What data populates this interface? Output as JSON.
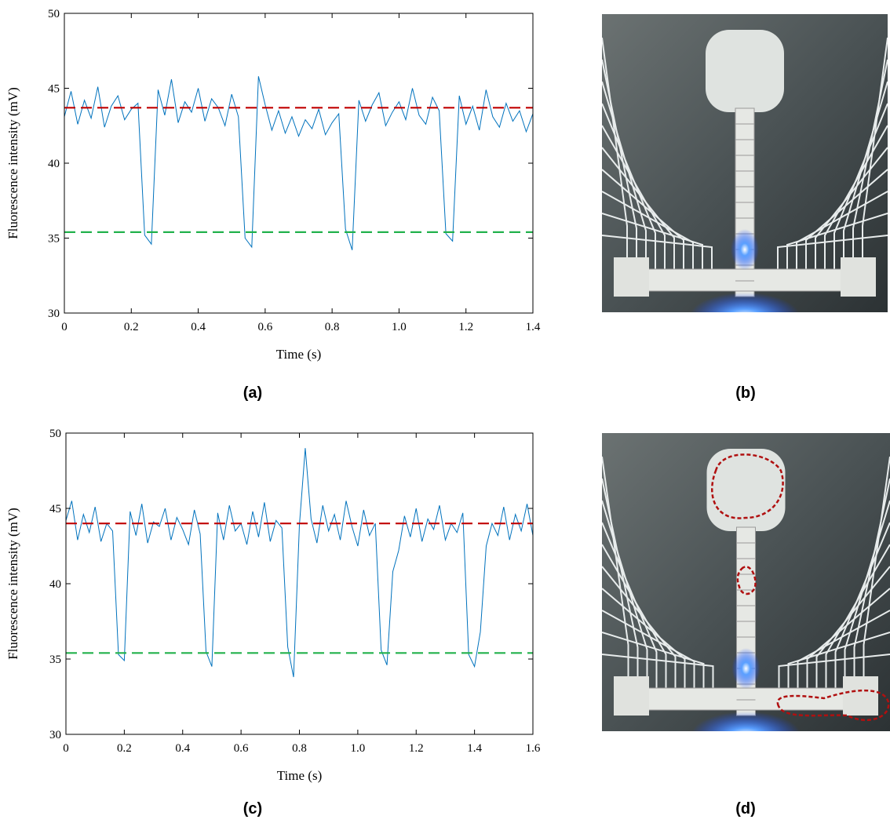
{
  "chart_data": [
    {
      "type": "line",
      "xlabel": "Time (s)",
      "ylabel": "Fluorescence intensity (mV)",
      "xlim": [
        0,
        1.4
      ],
      "xticks": [
        0,
        0.2,
        0.4,
        0.6,
        0.8,
        {
          "value": 1,
          "label": "1.0"
        },
        1.2,
        1.4
      ],
      "ylim": [
        30,
        50
      ],
      "yticks": [
        30,
        35,
        40,
        45,
        50
      ],
      "x": [
        0,
        0.02,
        0.04,
        0.06,
        0.08,
        0.1,
        0.12,
        0.14,
        0.16,
        0.18,
        0.2,
        0.22,
        0.24,
        0.26,
        0.28,
        0.3,
        0.32,
        0.34,
        0.36,
        0.38,
        0.4,
        0.42,
        0.44,
        0.46,
        0.48,
        0.5,
        0.52,
        0.54,
        0.56,
        0.58,
        0.6,
        0.62,
        0.64,
        0.66,
        0.68,
        0.7,
        0.72,
        0.74,
        0.76,
        0.78,
        0.8,
        0.82,
        0.84,
        0.86,
        0.88,
        0.9,
        0.92,
        0.94,
        0.96,
        0.98,
        1,
        1.02,
        1.04,
        1.06,
        1.08,
        1.1,
        1.12,
        1.14,
        1.16,
        1.18,
        1.2,
        1.22,
        1.24,
        1.26,
        1.28,
        1.3,
        1.32,
        1.34,
        1.36,
        1.38,
        1.4
      ],
      "series": [
        {
          "color": "#0072bd",
          "values": [
            43.1,
            44.8,
            42.6,
            44.2,
            43.0,
            45.1,
            42.4,
            43.8,
            44.5,
            42.9,
            43.6,
            44.0,
            35.2,
            34.6,
            44.9,
            43.2,
            45.6,
            42.7,
            44.1,
            43.4,
            45.0,
            42.8,
            44.3,
            43.7,
            42.5,
            44.6,
            43.1,
            35.0,
            34.4,
            45.8,
            43.9,
            42.2,
            43.5,
            42.0,
            43.1,
            41.8,
            42.9,
            42.3,
            43.6,
            41.9,
            42.7,
            43.3,
            35.6,
            34.2,
            44.2,
            42.8,
            43.9,
            44.7,
            42.5,
            43.4,
            44.1,
            42.9,
            45.0,
            43.2,
            42.6,
            44.4,
            43.5,
            35.3,
            34.8,
            44.5,
            42.6,
            43.8,
            42.2,
            44.9,
            43.1,
            42.4,
            44.0,
            42.8,
            43.5,
            42.1,
            43.3
          ]
        }
      ],
      "hlines": [
        {
          "value": 43.7,
          "color": "#c00000"
        },
        {
          "value": 35.4,
          "color": "#22b14c"
        }
      ]
    },
    {
      "type": "line",
      "xlabel": "Time (s)",
      "ylabel": "Fluorescence intensity (mV)",
      "xlim": [
        0,
        1.6
      ],
      "xticks": [
        0,
        0.2,
        0.4,
        0.6,
        0.8,
        {
          "value": 1,
          "label": "1.0"
        },
        1.2,
        1.4,
        1.6
      ],
      "ylim": [
        30,
        50
      ],
      "yticks": [
        30,
        35,
        40,
        45,
        50
      ],
      "x": [
        0,
        0.02,
        0.04,
        0.06,
        0.08,
        0.1,
        0.12,
        0.14,
        0.16,
        0.18,
        0.2,
        0.22,
        0.24,
        0.26,
        0.28,
        0.3,
        0.32,
        0.34,
        0.36,
        0.38,
        0.4,
        0.42,
        0.44,
        0.46,
        0.48,
        0.5,
        0.52,
        0.54,
        0.56,
        0.58,
        0.6,
        0.62,
        0.64,
        0.66,
        0.68,
        0.7,
        0.72,
        0.74,
        0.76,
        0.78,
        0.8,
        0.82,
        0.84,
        0.86,
        0.88,
        0.9,
        0.92,
        0.94,
        0.96,
        0.98,
        1,
        1.02,
        1.04,
        1.06,
        1.08,
        1.1,
        1.12,
        1.14,
        1.16,
        1.18,
        1.2,
        1.22,
        1.24,
        1.26,
        1.28,
        1.3,
        1.32,
        1.34,
        1.36,
        1.38,
        1.4,
        1.42,
        1.44,
        1.46,
        1.48,
        1.5,
        1.52,
        1.54,
        1.56,
        1.58,
        1.6
      ],
      "series": [
        {
          "color": "#0072bd",
          "values": [
            44.2,
            45.5,
            42.9,
            44.6,
            43.4,
            45.1,
            42.8,
            44.0,
            43.5,
            35.3,
            34.9,
            44.8,
            43.2,
            45.3,
            42.7,
            44.1,
            43.8,
            45.0,
            42.9,
            44.4,
            43.6,
            42.6,
            44.9,
            43.3,
            35.5,
            34.5,
            44.7,
            42.9,
            45.2,
            43.5,
            44.0,
            42.6,
            44.8,
            43.1,
            45.4,
            42.8,
            44.2,
            43.7,
            35.8,
            33.8,
            43.9,
            49.0,
            44.3,
            42.7,
            45.2,
            43.5,
            44.6,
            42.9,
            45.5,
            43.8,
            42.5,
            44.9,
            43.2,
            44.0,
            35.6,
            34.6,
            40.8,
            42.2,
            44.5,
            43.1,
            45.0,
            42.8,
            44.3,
            43.6,
            45.2,
            42.9,
            44.0,
            43.4,
            44.7,
            35.3,
            34.5,
            36.8,
            42.5,
            44.0,
            43.2,
            45.1,
            42.9,
            44.6,
            43.5,
            45.3,
            43.2
          ]
        }
      ],
      "hlines": [
        {
          "value": 44.0,
          "color": "#c00000"
        },
        {
          "value": 35.4,
          "color": "#22b14c"
        }
      ]
    }
  ],
  "panel_labels": [
    "(a)",
    "(b)",
    "(c)",
    "(d)"
  ]
}
